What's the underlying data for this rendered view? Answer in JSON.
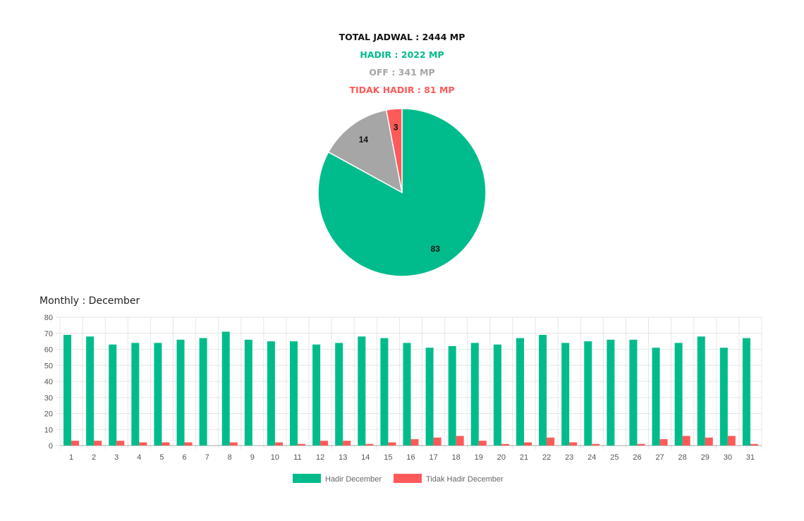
{
  "summary": {
    "total": "TOTAL JADWAL : 2444 MP",
    "hadir": "HADIR : 2022 MP",
    "off": "OFF : 341 MP",
    "tidak_hadir": "TIDAK HADIR : 81 MP"
  },
  "colors": {
    "hadir": "#00BC8C",
    "off": "#A6A6A6",
    "tidak_hadir": "#FF5A5A",
    "grid": "#E6E6E6",
    "axis": "#AAAAAA"
  },
  "monthly_title": "Monthly : December",
  "chart_data": [
    {
      "type": "pie",
      "categories": [
        "Hadir",
        "Off",
        "Tidak Hadir"
      ],
      "values": [
        83,
        14,
        3
      ],
      "slice_labels": [
        "83",
        "14",
        "3"
      ],
      "colors": [
        "#00BC8C",
        "#A6A6A6",
        "#FF5A5A"
      ],
      "start": "top",
      "direction": "clockwise"
    },
    {
      "type": "bar",
      "categories": [
        "1",
        "2",
        "3",
        "4",
        "5",
        "6",
        "7",
        "8",
        "9",
        "10",
        "11",
        "12",
        "13",
        "14",
        "15",
        "16",
        "17",
        "18",
        "19",
        "20",
        "21",
        "22",
        "23",
        "24",
        "25",
        "26",
        "27",
        "28",
        "29",
        "30",
        "31"
      ],
      "series": [
        {
          "name": "Hadir December",
          "color": "#00BC8C",
          "values": [
            69,
            68,
            63,
            64,
            64,
            66,
            67,
            71,
            66,
            65,
            65,
            63,
            64,
            68,
            67,
            64,
            61,
            62,
            64,
            63,
            67,
            69,
            64,
            65,
            66,
            66,
            61,
            64,
            68,
            61,
            67
          ]
        },
        {
          "name": "Tidak Hadir December",
          "color": "#FF5A5A",
          "values": [
            3,
            3,
            3,
            2,
            2,
            2,
            0,
            2,
            0,
            2,
            1,
            3,
            3,
            1,
            2,
            4,
            5,
            6,
            3,
            1,
            2,
            5,
            2,
            1,
            0,
            1,
            4,
            6,
            5,
            6,
            1
          ]
        }
      ],
      "ylim": [
        0,
        80
      ],
      "yticks": [
        "0",
        "10",
        "20",
        "30",
        "40",
        "50",
        "60",
        "70",
        "80"
      ],
      "grid": true,
      "legend": "bottom"
    }
  ]
}
